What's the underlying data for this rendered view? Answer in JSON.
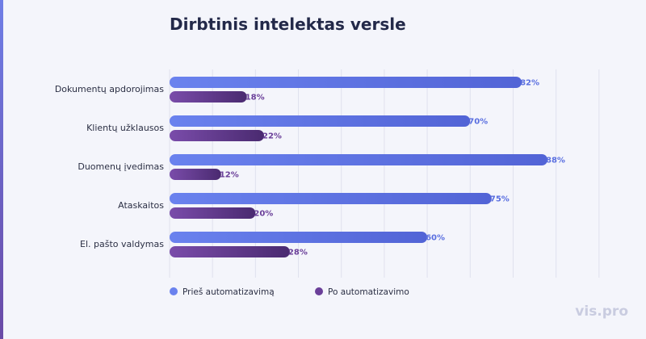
{
  "chart_data": {
    "type": "bar",
    "orientation": "horizontal",
    "title": "Dirbtinis intelektas versle",
    "categories": [
      "Dokumentų apdorojimas",
      "Klientų užklausos",
      "Duomenų įvedimas",
      "Ataskaitos",
      "El. pašto valdymas"
    ],
    "series": [
      {
        "name": "Prieš automatizavimą",
        "values": [
          82,
          70,
          88,
          75,
          60
        ],
        "color": "#5a6fe0"
      },
      {
        "name": "Po automatizavimo",
        "values": [
          18,
          22,
          12,
          20,
          28
        ],
        "color": "#6a3f99"
      }
    ],
    "value_suffix": "%",
    "xlim": [
      0,
      110
    ],
    "grid": true,
    "legend_position": "bottom-left"
  },
  "watermark": "vis.pro"
}
